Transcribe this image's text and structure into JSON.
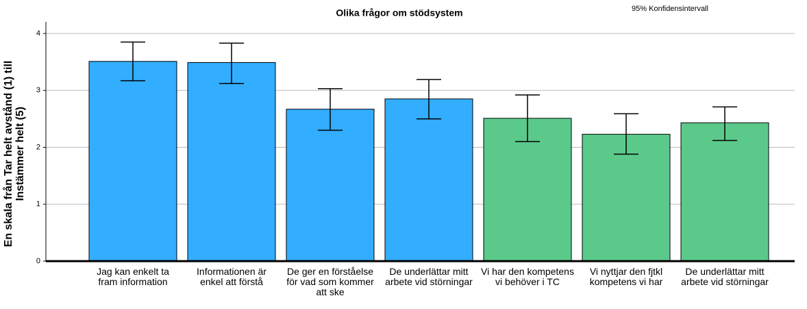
{
  "chart_data": {
    "type": "bar",
    "title": "Olika frågor om stödsystem",
    "annotation": "95% Konfidensintervall",
    "ylabel": "En skala från Tar helt avstånd (1)  till Instämmer helt (5)",
    "categories": [
      "Jag kan enkelt ta fram information",
      "Informationen är enkel att förstå",
      "De ger en förståelse för vad som kommer att ske",
      "De underlättar mitt arbete vid störningar",
      "Vi har den kompetens vi behöver i TC",
      "Vi nyttjar den fjtkl kompetens vi har",
      "De underlättar mitt arbete vid störningar"
    ],
    "values": [
      3.51,
      3.49,
      2.67,
      2.85,
      2.51,
      2.23,
      2.43
    ],
    "ci_lower": [
      3.17,
      3.12,
      2.3,
      2.5,
      2.1,
      1.88,
      2.12
    ],
    "ci_upper": [
      3.85,
      3.83,
      3.03,
      3.19,
      2.92,
      2.59,
      2.71
    ],
    "colors": [
      "#33adff",
      "#33adff",
      "#33adff",
      "#33adff",
      "#5bc98a",
      "#5bc98a",
      "#5bc98a"
    ],
    "ylim": [
      0,
      4
    ],
    "yticks": [
      0,
      1,
      2,
      3,
      4
    ],
    "grid": true
  }
}
